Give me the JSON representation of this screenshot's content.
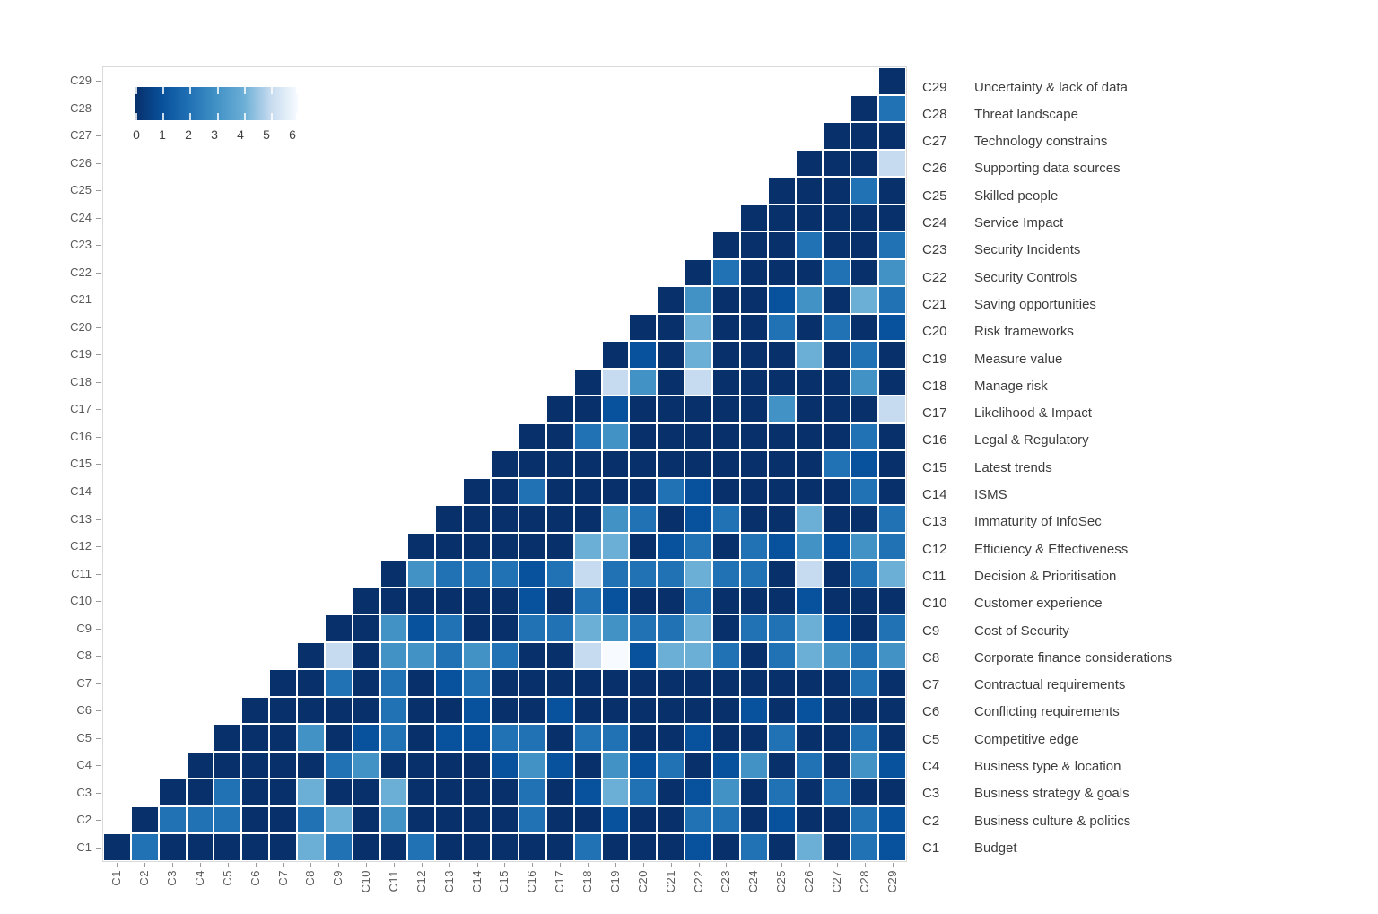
{
  "page": {
    "background": "#ffffff"
  },
  "chart_data": {
    "type": "heatmap",
    "title": "",
    "shape": "lower-triangle",
    "grid": false,
    "legend_position": "right",
    "colors": {
      "scale_anchors": [
        "#08306b",
        "#08519c",
        "#2171b5",
        "#4292c6",
        "#6baed6",
        "#c6dbef",
        "#f7fbff"
      ],
      "cell_gap": "#ffffff",
      "tick_text": "#595959",
      "legend_text": "#3d3d3d",
      "spine": "#d9d9d9"
    },
    "colorbar": {
      "min": 0,
      "max": 6,
      "tick_labels": [
        "0",
        "1",
        "2",
        "3",
        "4",
        "5",
        "6"
      ]
    },
    "x_tick_labels": [
      "C1",
      "C2",
      "C3",
      "C4",
      "C5",
      "C6",
      "C7",
      "C8",
      "C9",
      "C10",
      "C11",
      "C12",
      "C13",
      "C14",
      "C15",
      "C16",
      "C17",
      "C18",
      "C19",
      "C20",
      "C21",
      "C22",
      "C23",
      "C24",
      "C25",
      "C26",
      "C27",
      "C28",
      "C29"
    ],
    "y_tick_labels_top_to_bottom": [
      "C29",
      "C28",
      "C27",
      "C26",
      "C25",
      "C24",
      "C23",
      "C22",
      "C21",
      "C20",
      "C19",
      "C18",
      "C17",
      "C16",
      "C15",
      "C14",
      "C13",
      "C12",
      "C11",
      "C10",
      "C9",
      "C8",
      "C7",
      "C6",
      "C5",
      "C4",
      "C3",
      "C2",
      "C1"
    ],
    "triangle_rows": [
      {
        "row": "C1",
        "start_col": "C1",
        "values": [
          0,
          2,
          0,
          0,
          0,
          0,
          0,
          4,
          2,
          0,
          0,
          2,
          0,
          0,
          0,
          0,
          0,
          2,
          0,
          0,
          0,
          1,
          0,
          2,
          0,
          4,
          0,
          2,
          1
        ]
      },
      {
        "row": "C2",
        "start_col": "C2",
        "values": [
          0,
          2,
          2,
          2,
          0,
          0,
          2,
          4,
          0,
          3,
          0,
          0,
          0,
          0,
          2,
          0,
          0,
          1,
          0,
          0,
          2,
          2,
          0,
          1,
          0,
          0,
          2,
          1
        ]
      },
      {
        "row": "C3",
        "start_col": "C3",
        "values": [
          0,
          0,
          2,
          0,
          0,
          4,
          0,
          0,
          4,
          0,
          0,
          0,
          0,
          2,
          0,
          1,
          4,
          2,
          0,
          1,
          3,
          0,
          2,
          0,
          2,
          0,
          0
        ]
      },
      {
        "row": "C4",
        "start_col": "C4",
        "values": [
          0,
          0,
          0,
          0,
          0,
          2,
          3,
          0,
          0,
          0,
          0,
          1,
          3,
          1,
          0,
          3,
          1,
          2,
          0,
          1,
          3,
          0,
          2,
          0,
          3,
          1
        ]
      },
      {
        "row": "C5",
        "start_col": "C5",
        "values": [
          0,
          0,
          0,
          3,
          0,
          1,
          2,
          0,
          1,
          1,
          2,
          2,
          0,
          2,
          2,
          0,
          0,
          1,
          0,
          0,
          2,
          0,
          0,
          2,
          0
        ]
      },
      {
        "row": "C6",
        "start_col": "C6",
        "values": [
          0,
          0,
          0,
          0,
          0,
          2,
          0,
          0,
          1,
          0,
          0,
          1,
          0,
          0,
          0,
          0,
          0,
          0,
          1,
          0,
          1,
          0,
          0,
          0
        ]
      },
      {
        "row": "C7",
        "start_col": "C7",
        "values": [
          0,
          0,
          2,
          0,
          2,
          0,
          1,
          2,
          0,
          0,
          0,
          0,
          0,
          0,
          0,
          0,
          0,
          0,
          0,
          0,
          0,
          2,
          0
        ]
      },
      {
        "row": "C8",
        "start_col": "C8",
        "values": [
          0,
          5,
          0,
          3,
          3,
          2,
          3,
          2,
          0,
          0,
          5,
          6,
          1,
          4,
          4,
          2,
          0,
          2,
          4,
          3,
          2,
          3
        ]
      },
      {
        "row": "C9",
        "start_col": "C9",
        "values": [
          0,
          0,
          3,
          1,
          2,
          0,
          0,
          2,
          2,
          4,
          3,
          2,
          2,
          4,
          0,
          2,
          2,
          4,
          1,
          0,
          2
        ]
      },
      {
        "row": "C10",
        "start_col": "C10",
        "values": [
          0,
          0,
          0,
          0,
          0,
          0,
          1,
          0,
          2,
          1,
          0,
          0,
          2,
          0,
          0,
          0,
          1,
          0,
          0,
          0
        ]
      },
      {
        "row": "C11",
        "start_col": "C11",
        "values": [
          0,
          3,
          2,
          2,
          2,
          1,
          2,
          5,
          2,
          2,
          2,
          4,
          2,
          2,
          0,
          5,
          0,
          2,
          4
        ]
      },
      {
        "row": "C12",
        "start_col": "C12",
        "values": [
          0,
          0,
          0,
          0,
          0,
          0,
          4,
          4,
          0,
          1,
          2,
          0,
          2,
          1,
          3,
          1,
          3,
          2
        ]
      },
      {
        "row": "C13",
        "start_col": "C13",
        "values": [
          0,
          0,
          0,
          0,
          0,
          0,
          3,
          2,
          0,
          1,
          2,
          0,
          0,
          4,
          0,
          0,
          2
        ]
      },
      {
        "row": "C14",
        "start_col": "C14",
        "values": [
          0,
          0,
          2,
          0,
          0,
          0,
          0,
          2,
          1,
          0,
          0,
          0,
          0,
          0,
          2,
          0
        ]
      },
      {
        "row": "C15",
        "start_col": "C15",
        "values": [
          0,
          0,
          0,
          0,
          0,
          0,
          0,
          0,
          0,
          0,
          0,
          0,
          2,
          1,
          0
        ]
      },
      {
        "row": "C16",
        "start_col": "C16",
        "values": [
          0,
          0,
          2,
          3,
          0,
          0,
          0,
          0,
          0,
          0,
          0,
          0,
          2,
          0
        ]
      },
      {
        "row": "C17",
        "start_col": "C17",
        "values": [
          0,
          0,
          1,
          0,
          0,
          0,
          0,
          0,
          3,
          0,
          0,
          0,
          5
        ]
      },
      {
        "row": "C18",
        "start_col": "C18",
        "values": [
          0,
          5,
          3,
          0,
          5,
          0,
          0,
          0,
          0,
          0,
          3,
          0
        ]
      },
      {
        "row": "C19",
        "start_col": "C19",
        "values": [
          0,
          1,
          0,
          4,
          0,
          0,
          0,
          4,
          0,
          2,
          0
        ]
      },
      {
        "row": "C20",
        "start_col": "C20",
        "values": [
          0,
          0,
          4,
          0,
          0,
          2,
          0,
          2,
          0,
          1
        ]
      },
      {
        "row": "C21",
        "start_col": "C21",
        "values": [
          0,
          3,
          0,
          0,
          1,
          3,
          0,
          4,
          2
        ]
      },
      {
        "row": "C22",
        "start_col": "C22",
        "values": [
          0,
          2,
          0,
          0,
          0,
          2,
          0,
          3
        ]
      },
      {
        "row": "C23",
        "start_col": "C23",
        "values": [
          0,
          0,
          0,
          2,
          0,
          0,
          2
        ]
      },
      {
        "row": "C24",
        "start_col": "C24",
        "values": [
          0,
          0,
          0,
          0,
          0,
          0
        ]
      },
      {
        "row": "C25",
        "start_col": "C25",
        "values": [
          0,
          0,
          0,
          2,
          0
        ]
      },
      {
        "row": "C26",
        "start_col": "C26",
        "values": [
          0,
          0,
          0,
          5
        ]
      },
      {
        "row": "C27",
        "start_col": "C27",
        "values": [
          0,
          0,
          0
        ]
      },
      {
        "row": "C28",
        "start_col": "C28",
        "values": [
          0,
          2
        ]
      },
      {
        "row": "C29",
        "start_col": "C29",
        "values": [
          0
        ]
      }
    ]
  },
  "legend": {
    "entries": [
      {
        "code": "C29",
        "label": "Uncertainty & lack of data"
      },
      {
        "code": "C28",
        "label": "Threat landscape"
      },
      {
        "code": "C27",
        "label": "Technology constrains"
      },
      {
        "code": "C26",
        "label": "Supporting data sources"
      },
      {
        "code": "C25",
        "label": "Skilled people"
      },
      {
        "code": "C24",
        "label": "Service Impact"
      },
      {
        "code": "C23",
        "label": "Security Incidents"
      },
      {
        "code": "C22",
        "label": "Security Controls"
      },
      {
        "code": "C21",
        "label": "Saving opportunities"
      },
      {
        "code": "C20",
        "label": "Risk frameworks"
      },
      {
        "code": "C19",
        "label": "Measure value"
      },
      {
        "code": "C18",
        "label": "Manage risk"
      },
      {
        "code": "C17",
        "label": "Likelihood & Impact"
      },
      {
        "code": "C16",
        "label": "Legal & Regulatory"
      },
      {
        "code": "C15",
        "label": "Latest trends"
      },
      {
        "code": "C14",
        "label": "ISMS"
      },
      {
        "code": "C13",
        "label": "Immaturity of InfoSec"
      },
      {
        "code": "C12",
        "label": "Efficiency & Effectiveness"
      },
      {
        "code": "C11",
        "label": "Decision & Prioritisation"
      },
      {
        "code": "C10",
        "label": "Customer experience"
      },
      {
        "code": "C9",
        "label": "Cost of Security"
      },
      {
        "code": "C8",
        "label": "Corporate finance considerations"
      },
      {
        "code": "C7",
        "label": "Contractual requirements"
      },
      {
        "code": "C6",
        "label": "Conflicting requirements"
      },
      {
        "code": "C5",
        "label": "Competitive edge"
      },
      {
        "code": "C4",
        "label": "Business type & location"
      },
      {
        "code": "C3",
        "label": "Business strategy & goals"
      },
      {
        "code": "C2",
        "label": "Business culture & politics"
      },
      {
        "code": "C1",
        "label": "Budget"
      }
    ]
  }
}
